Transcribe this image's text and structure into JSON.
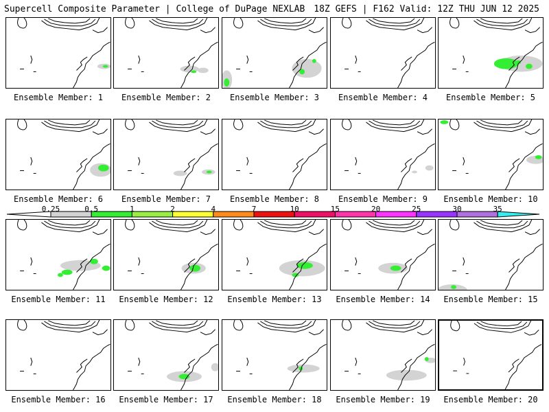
{
  "header": {
    "title": "Supercell Composite Parameter | College of DuPage NEXLAB",
    "run_info": "18Z GEFS | F162 Valid: 12Z THU JUN 12 2025"
  },
  "member_label_prefix": "Ensemble Member:",
  "selected_member": 20,
  "colorbar": {
    "labels": [
      "0.25",
      "0.5",
      "1",
      "2",
      "4",
      "7",
      "10",
      "15",
      "20",
      "25",
      "30",
      "35"
    ],
    "colors": [
      "#d3d3d3",
      "#33ee33",
      "#99ee44",
      "#ffff33",
      "#ff8c1a",
      "#ee1111",
      "#ee1166",
      "#ff33aa",
      "#ff33ff",
      "#9933ff",
      "#b070e0",
      "#33eeee"
    ]
  },
  "members": [
    {
      "n": 1,
      "label": "Ensemble Member: 1",
      "severe": "low"
    },
    {
      "n": 2,
      "label": "Ensemble Member: 2",
      "severe": "low"
    },
    {
      "n": 3,
      "label": "Ensemble Member: 3",
      "severe": "moderate"
    },
    {
      "n": 4,
      "label": "Ensemble Member: 4",
      "severe": "none"
    },
    {
      "n": 5,
      "label": "Ensemble Member: 5",
      "severe": "moderate"
    },
    {
      "n": 6,
      "label": "Ensemble Member: 6",
      "severe": "moderate"
    },
    {
      "n": 7,
      "label": "Ensemble Member: 7",
      "severe": "low"
    },
    {
      "n": 8,
      "label": "Ensemble Member: 8",
      "severe": "none"
    },
    {
      "n": 9,
      "label": "Ensemble Member: 9",
      "severe": "low"
    },
    {
      "n": 10,
      "label": "Ensemble Member: 10",
      "severe": "low"
    },
    {
      "n": 11,
      "label": "Ensemble Member: 11",
      "severe": "moderate"
    },
    {
      "n": 12,
      "label": "Ensemble Member: 12",
      "severe": "low"
    },
    {
      "n": 13,
      "label": "Ensemble Member: 13",
      "severe": "moderate"
    },
    {
      "n": 14,
      "label": "Ensemble Member: 14",
      "severe": "moderate"
    },
    {
      "n": 15,
      "label": "Ensemble Member: 15",
      "severe": "low"
    },
    {
      "n": 16,
      "label": "Ensemble Member: 16",
      "severe": "none"
    },
    {
      "n": 17,
      "label": "Ensemble Member: 17",
      "severe": "low"
    },
    {
      "n": 18,
      "label": "Ensemble Member: 18",
      "severe": "low"
    },
    {
      "n": 19,
      "label": "Ensemble Member: 19",
      "severe": "low"
    },
    {
      "n": 20,
      "label": "Ensemble Member: 20",
      "severe": "none"
    }
  ]
}
